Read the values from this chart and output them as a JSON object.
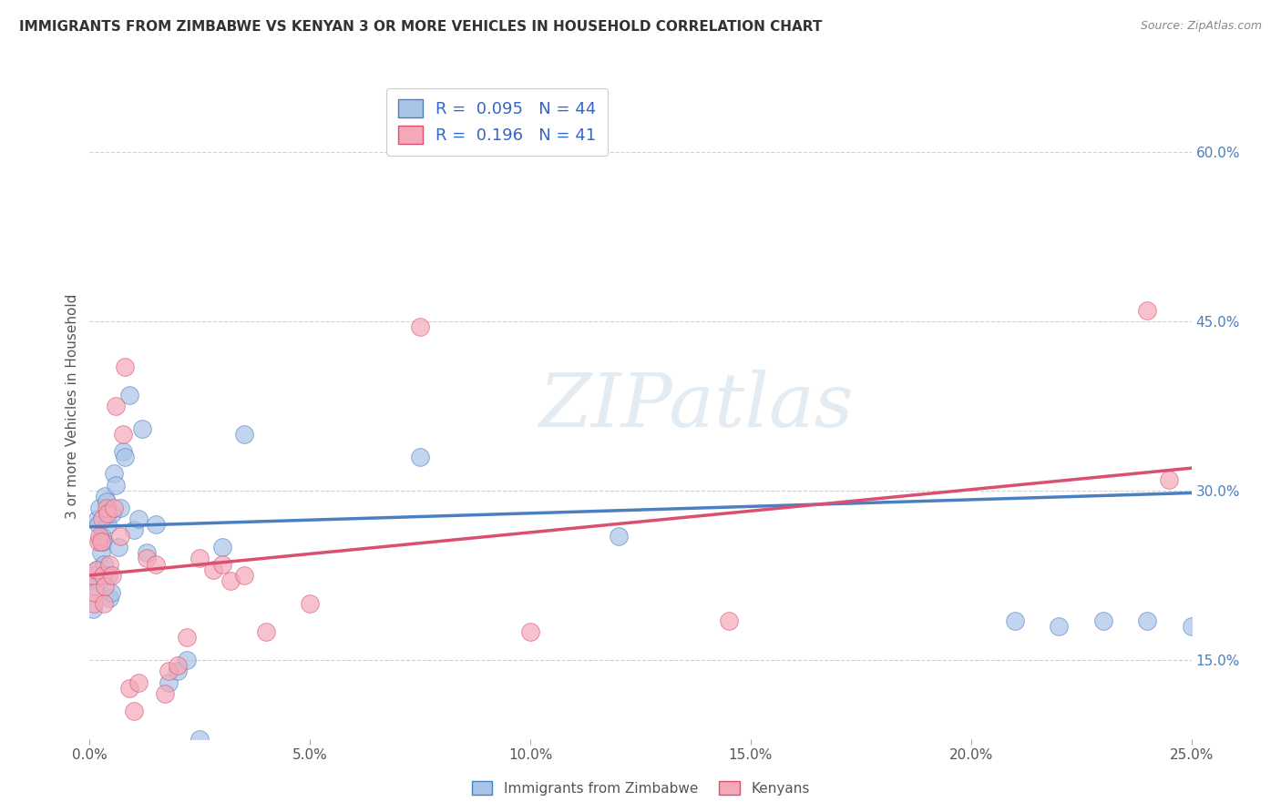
{
  "title": "IMMIGRANTS FROM ZIMBABWE VS KENYAN 3 OR MORE VEHICLES IN HOUSEHOLD CORRELATION CHART",
  "source": "Source: ZipAtlas.com",
  "xlabel_vals": [
    0.0,
    5.0,
    10.0,
    15.0,
    20.0,
    25.0
  ],
  "ylabel_vals": [
    15.0,
    30.0,
    45.0,
    60.0
  ],
  "ylabel_label": "3 or more Vehicles in Household",
  "legend_label1": "Immigrants from Zimbabwe",
  "legend_label2": "Kenyans",
  "legend_R1": "0.095",
  "legend_N1": "44",
  "legend_R2": "0.196",
  "legend_N2": "41",
  "color_blue": "#aac4e8",
  "color_pink": "#f4a8b8",
  "trendline_blue": "#4a7fc1",
  "trendline_pink": "#d95070",
  "background": "#ffffff",
  "grid_color": "#cccccc",
  "xlim": [
    0.0,
    25.0
  ],
  "ylim": [
    8.0,
    67.0
  ],
  "blue_dots_x": [
    0.05,
    0.08,
    0.12,
    0.15,
    0.18,
    0.2,
    0.22,
    0.25,
    0.28,
    0.3,
    0.32,
    0.35,
    0.38,
    0.4,
    0.42,
    0.45,
    0.48,
    0.5,
    0.55,
    0.6,
    0.65,
    0.7,
    0.75,
    0.8,
    0.9,
    1.0,
    1.1,
    1.2,
    1.3,
    1.5,
    1.8,
    2.0,
    2.2,
    2.5,
    3.0,
    3.5,
    7.5,
    12.0,
    21.0,
    22.0,
    23.0,
    24.0,
    25.0,
    25.5
  ],
  "blue_dots_y": [
    22.0,
    19.5,
    21.5,
    23.0,
    27.5,
    27.0,
    28.5,
    24.5,
    26.0,
    25.5,
    23.5,
    29.5,
    29.0,
    27.0,
    22.5,
    20.5,
    21.0,
    28.0,
    31.5,
    30.5,
    25.0,
    28.5,
    33.5,
    33.0,
    38.5,
    26.5,
    27.5,
    35.5,
    24.5,
    27.0,
    13.0,
    14.0,
    15.0,
    8.0,
    25.0,
    35.0,
    33.0,
    26.0,
    18.5,
    18.0,
    18.5,
    18.5,
    18.0,
    18.5
  ],
  "pink_dots_x": [
    0.08,
    0.1,
    0.12,
    0.15,
    0.2,
    0.22,
    0.25,
    0.28,
    0.3,
    0.32,
    0.35,
    0.38,
    0.4,
    0.45,
    0.5,
    0.55,
    0.6,
    0.7,
    0.75,
    0.8,
    0.9,
    1.0,
    1.1,
    1.3,
    1.5,
    1.7,
    1.8,
    2.0,
    2.2,
    2.5,
    2.8,
    3.0,
    3.2,
    3.5,
    4.0,
    5.0,
    7.5,
    10.0,
    14.5,
    24.0,
    24.5
  ],
  "pink_dots_y": [
    22.5,
    20.0,
    21.0,
    23.0,
    25.5,
    26.0,
    25.5,
    27.5,
    22.5,
    20.0,
    21.5,
    28.5,
    28.0,
    23.5,
    22.5,
    28.5,
    37.5,
    26.0,
    35.0,
    41.0,
    12.5,
    10.5,
    13.0,
    24.0,
    23.5,
    12.0,
    14.0,
    14.5,
    17.0,
    24.0,
    23.0,
    23.5,
    22.0,
    22.5,
    17.5,
    20.0,
    44.5,
    17.5,
    18.5,
    46.0,
    31.0
  ],
  "blue_trend_intercept": 26.8,
  "blue_trend_slope": 0.12,
  "pink_trend_intercept": 22.5,
  "pink_trend_slope": 0.38,
  "watermark": "ZIPatlas"
}
